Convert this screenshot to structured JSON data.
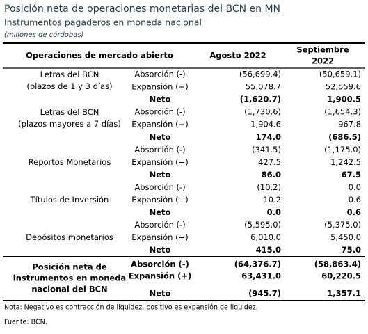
{
  "header": {
    "title": "Posición neta de operaciones monetarias del BCN en MN",
    "subtitle": "Instrumentos pagaderos en moneda nacional",
    "unit": "(millones de córdobas)"
  },
  "table": {
    "columns": [
      "Operaciones de mercado abierto",
      "Agosto 2022",
      [
        "Septiembre",
        "2022"
      ]
    ],
    "groups": [
      {
        "label": [
          "Letras del BCN",
          "(plazos de 1 y 3 días)"
        ],
        "rows": [
          [
            "Absorción (-)",
            "(56,699.4)",
            "(50,659.1)"
          ],
          [
            "Expansión (+)",
            "55,078.7",
            "52,559.6"
          ],
          [
            "Neto",
            "(1,620.7)",
            "1,900.5"
          ]
        ]
      },
      {
        "label": [
          "Letras del BCN",
          "(plazos mayores a 7 días)"
        ],
        "rows": [
          [
            "Absorción (-)",
            "(1,730.6)",
            "(1,654.3)"
          ],
          [
            "Expansión (+)",
            "1,904.6",
            "967.8"
          ],
          [
            "Neto",
            "174.0",
            "(686.5)"
          ]
        ]
      },
      {
        "label": [
          "Reportos Monetarios"
        ],
        "rows": [
          [
            "Absorción (-)",
            "(341.5)",
            "(1,175.0)"
          ],
          [
            "Expansión (+)",
            "427.5",
            "1,242.5"
          ],
          [
            "Neto",
            "86.0",
            "67.5"
          ]
        ]
      },
      {
        "label": [
          "Títulos de Inversión"
        ],
        "rows": [
          [
            "Absorción (-)",
            "(10.2)",
            "0.0"
          ],
          [
            "Expansión (+)",
            "10.2",
            "0.6"
          ],
          [
            "Neto",
            "0.0",
            "0.6"
          ]
        ]
      },
      {
        "label": [
          "Depósitos monetarios"
        ],
        "rows": [
          [
            "Absorción (-)",
            "(5,595.0)",
            "(5,375.0)"
          ],
          [
            "Expansión (+)",
            "6,010.0",
            "5,450.0"
          ],
          [
            "Neto",
            "415.0",
            "75.0"
          ]
        ]
      }
    ],
    "total": {
      "label": [
        "Posición neta de",
        "instrumentos en moneda",
        "nacional del BCN"
      ],
      "rows": [
        [
          "Absorción (-)",
          "(64,376.7)",
          "(58,863.4)"
        ],
        [
          "Expansión (+)",
          "63,431.0",
          "60,220.5"
        ],
        [
          "Neto",
          "(945.7)",
          "1,357.1"
        ]
      ]
    }
  },
  "notes": [
    "Nota: Negativo es contracción de liquidez, positivo es expansión de liquidez.",
    "Fuente: BCN."
  ]
}
